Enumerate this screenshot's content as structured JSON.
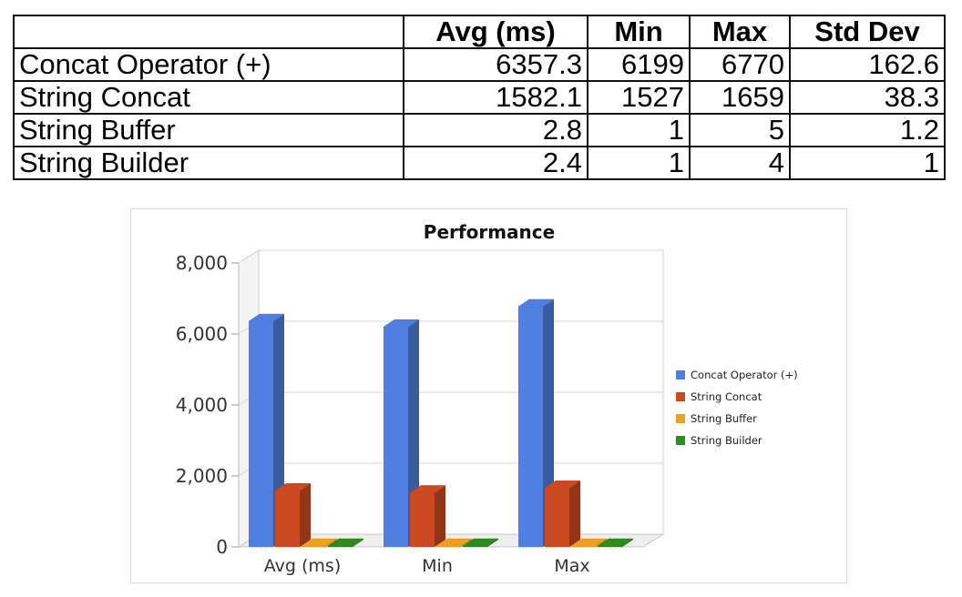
{
  "table": {
    "headers": [
      "",
      "Avg (ms)",
      "Min",
      "Max",
      "Std Dev"
    ],
    "rows": [
      {
        "name": "Concat Operator (+)",
        "cells": [
          "6357.3",
          "6199",
          "6770",
          "162.6"
        ]
      },
      {
        "name": "String Concat",
        "cells": [
          "1582.1",
          "1527",
          "1659",
          "38.3"
        ]
      },
      {
        "name": "String Buffer",
        "cells": [
          "2.8",
          "1",
          "5",
          "1.2"
        ]
      },
      {
        "name": "String Builder",
        "cells": [
          "2.4",
          "1",
          "4",
          "1"
        ]
      }
    ]
  },
  "chart_data": {
    "type": "bar",
    "title": "Performance",
    "categories": [
      "Avg (ms)",
      "Min",
      "Max"
    ],
    "series": [
      {
        "name": "Concat Operator (+)",
        "values": [
          6357.3,
          6199,
          6770
        ],
        "color": "#4f7fe0"
      },
      {
        "name": "String Concat",
        "values": [
          1582.1,
          1527,
          1659
        ],
        "color": "#cc4a22"
      },
      {
        "name": "String Buffer",
        "values": [
          2.8,
          1,
          5
        ],
        "color": "#f0a020"
      },
      {
        "name": "String Builder",
        "values": [
          2.4,
          1,
          4
        ],
        "color": "#2f8a22"
      }
    ],
    "ylim": [
      0,
      8000
    ],
    "yticks": [
      0,
      2000,
      4000,
      6000,
      8000
    ],
    "ytick_labels": [
      "0",
      "2,000",
      "4,000",
      "6,000",
      "8,000"
    ],
    "xlabel": "",
    "ylabel": "",
    "grid": true,
    "legend_position": "right"
  }
}
